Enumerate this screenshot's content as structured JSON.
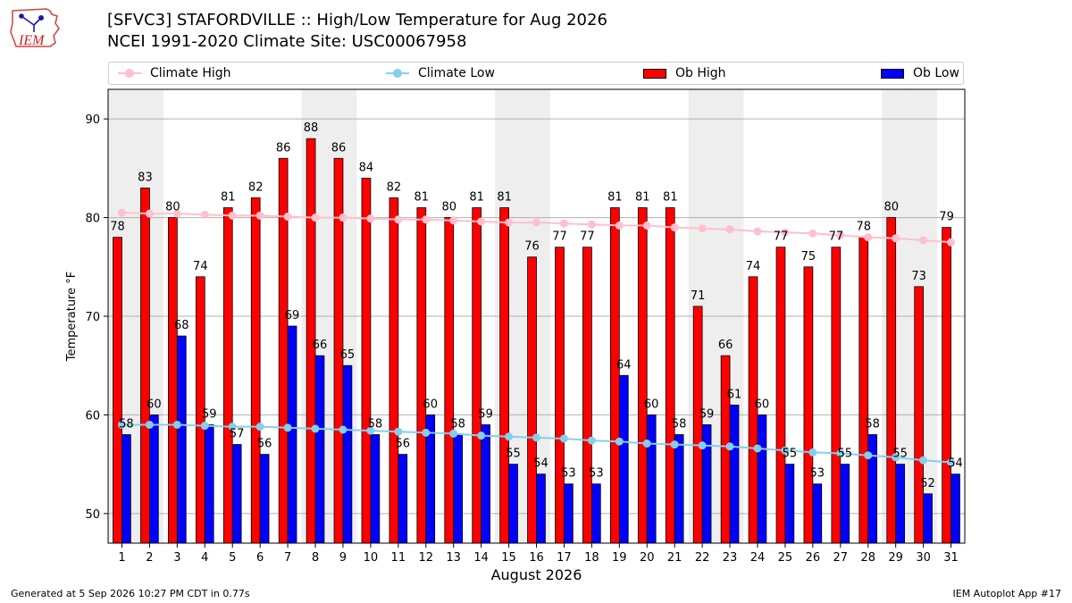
{
  "header": {
    "title": "[SFVC3] STAFORDVILLE :: High/Low Temperature for Aug 2026",
    "subtitle": "NCEI 1991-2020 Climate Site: USC00067958",
    "logo_text": "IEM"
  },
  "legend": {
    "climate_high": "Climate High",
    "climate_low": "Climate Low",
    "ob_high": "Ob High",
    "ob_low": "Ob Low"
  },
  "footer": {
    "left": "Generated at 5 Sep 2026 10:27 PM CDT in 0.77s",
    "right": "IEM Autoplot App #17"
  },
  "colors": {
    "ob_high": "#ff0000",
    "ob_low": "#0000ff",
    "climate_high": "#ffc0cb",
    "climate_low": "#87ceeb",
    "weekend_shade": "#eeeeee",
    "grid": "#b0b0b0"
  },
  "chart_data": {
    "type": "bar",
    "xlabel": "August 2026",
    "ylabel": "Temperature °F",
    "ylim": [
      47,
      93
    ],
    "yticks": [
      50,
      60,
      70,
      80,
      90
    ],
    "grid": true,
    "legend_position": "top",
    "categories": [
      "1",
      "2",
      "3",
      "4",
      "5",
      "6",
      "7",
      "8",
      "9",
      "10",
      "11",
      "12",
      "13",
      "14",
      "15",
      "16",
      "17",
      "18",
      "19",
      "20",
      "21",
      "22",
      "23",
      "24",
      "25",
      "26",
      "27",
      "28",
      "29",
      "30",
      "31"
    ],
    "shaded_days": [
      1,
      2,
      8,
      9,
      15,
      16,
      22,
      23,
      29,
      30
    ],
    "series": [
      {
        "name": "Ob High",
        "kind": "bar",
        "values": [
          78,
          83,
          80,
          74,
          81,
          82,
          86,
          88,
          86,
          84,
          82,
          81,
          80,
          81,
          81,
          76,
          77,
          77,
          81,
          81,
          81,
          71,
          66,
          74,
          77,
          75,
          77,
          78,
          80,
          73,
          79
        ]
      },
      {
        "name": "Ob Low",
        "kind": "bar",
        "values": [
          58,
          60,
          68,
          59,
          57,
          56,
          69,
          66,
          65,
          58,
          56,
          60,
          58,
          59,
          55,
          54,
          53,
          53,
          64,
          60,
          58,
          59,
          61,
          60,
          55,
          53,
          55,
          58,
          55,
          52,
          54
        ]
      },
      {
        "name": "Climate High",
        "kind": "line",
        "values": [
          80.5,
          80.4,
          80.4,
          80.3,
          80.2,
          80.2,
          80.1,
          80.0,
          80.0,
          79.9,
          79.8,
          79.8,
          79.7,
          79.6,
          79.5,
          79.5,
          79.4,
          79.3,
          79.2,
          79.2,
          79.0,
          78.9,
          78.8,
          78.6,
          78.5,
          78.4,
          78.2,
          78.0,
          77.9,
          77.7,
          77.5
        ]
      },
      {
        "name": "Climate Low",
        "kind": "line",
        "values": [
          59.0,
          59.0,
          59.0,
          58.9,
          58.8,
          58.8,
          58.7,
          58.6,
          58.5,
          58.4,
          58.3,
          58.2,
          58.1,
          57.9,
          57.8,
          57.7,
          57.6,
          57.4,
          57.3,
          57.1,
          57.0,
          56.9,
          56.8,
          56.6,
          56.4,
          56.2,
          56.1,
          55.9,
          55.7,
          55.4,
          55.2
        ]
      }
    ]
  }
}
